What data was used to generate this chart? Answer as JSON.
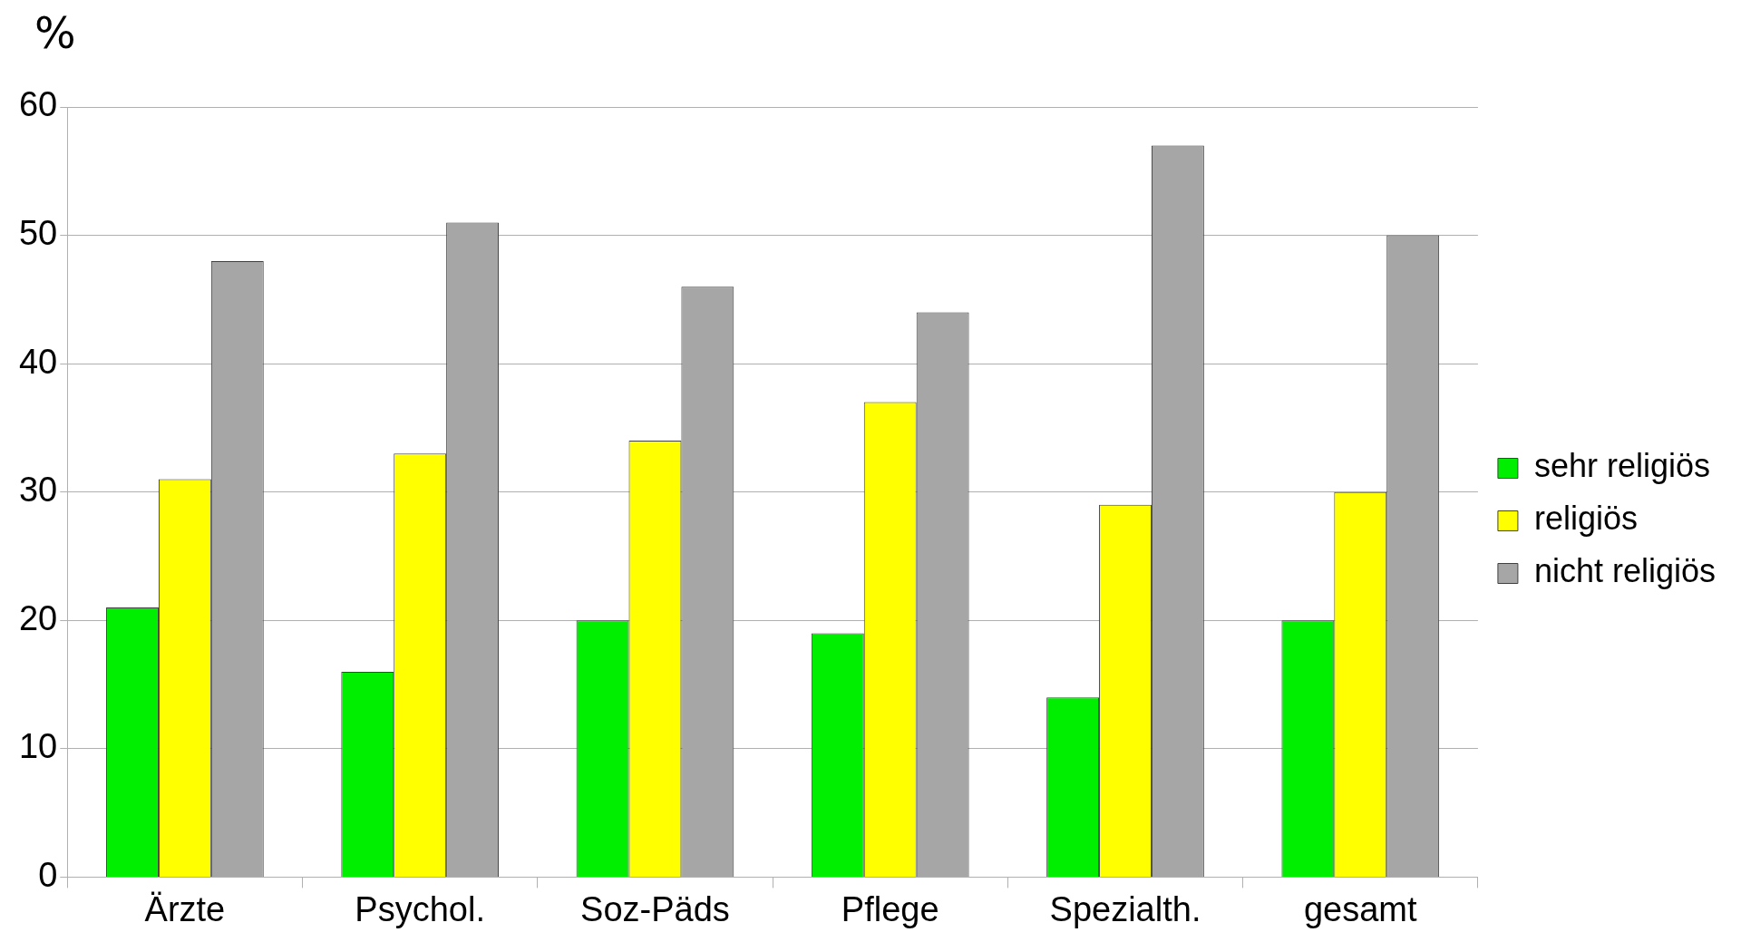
{
  "chart_data": {
    "type": "bar",
    "ylabel": "%",
    "categories": [
      "Ärzte",
      "Psychol.",
      "Soz-Päds",
      "Pflege",
      "Spezialth.",
      "gesamt"
    ],
    "series": [
      {
        "name": "sehr religiös",
        "color": "#00ee00",
        "values": [
          21,
          16,
          20,
          19,
          14,
          20
        ]
      },
      {
        "name": "religiös",
        "color": "#ffff00",
        "values": [
          31,
          33,
          34,
          37,
          29,
          30
        ]
      },
      {
        "name": "nicht religiös",
        "color": "#a6a6a6",
        "values": [
          48,
          51,
          46,
          44,
          57,
          50
        ]
      }
    ],
    "ylim": [
      0,
      60
    ],
    "yticks": [
      0,
      10,
      20,
      30,
      40,
      50,
      60
    ],
    "grid": "y",
    "legend": "right"
  }
}
